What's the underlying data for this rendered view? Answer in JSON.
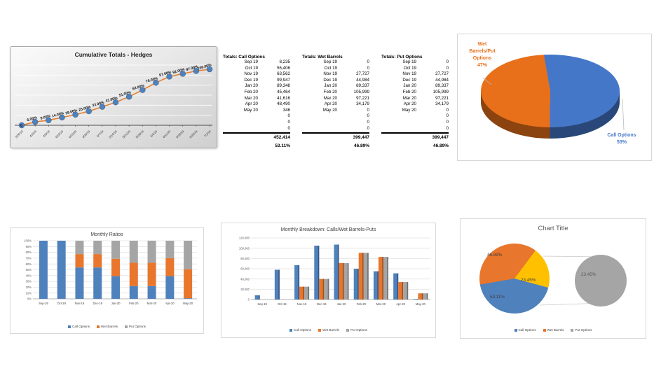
{
  "colors": {
    "blue": "#4F81BD",
    "orange": "#E8762C",
    "gray": "#A5A5A5",
    "gold": "#FFC000",
    "pie_blue": "#4577C9",
    "pie_orange": "#E8701A",
    "line": "#E87E2B"
  },
  "chart_data": [
    {
      "id": "cumulative-totals",
      "type": "line",
      "title": "Cumulative Totals - Hedges",
      "x": [
        "3/26/19",
        "4/2/19",
        "4/9/19",
        "4/16/19",
        "4/23/19",
        "4/30/19",
        "5/7/19",
        "5/14/19",
        "5/21/19",
        "5/28/19",
        "6/4/19",
        "6/11/19",
        "6/18/19",
        "6/25/19",
        "7/2/19"
      ],
      "values": [
        0,
        6,
        9,
        14,
        19,
        25,
        33,
        41,
        51,
        63,
        76,
        87,
        92,
        97,
        100
      ],
      "labels": [
        "0",
        "6.00%",
        "9.00%",
        "14.00%",
        "19.00%",
        "25.00%",
        "33.00%",
        "41.00%",
        "51.00%",
        "63.00%",
        "76.00%",
        "87.00%",
        "92.00%",
        "97.00%",
        "100.00%"
      ],
      "ylim": [
        0,
        110
      ],
      "grid": "on",
      "legend": "none"
    },
    {
      "id": "totals-tables",
      "type": "table",
      "tables": [
        {
          "title": "Totals: Call Options",
          "rows": [
            [
              "Sep 19",
              "8,235"
            ],
            [
              "Oct 19",
              "55,406"
            ],
            [
              "Nov 19",
              "63,562"
            ],
            [
              "Dec 19",
              "99,947"
            ],
            [
              "Jan 20",
              "89,348"
            ],
            [
              "Feb 20",
              "45,464"
            ],
            [
              "Mar 20",
              "41,616"
            ],
            [
              "Apr 20",
              "48,490"
            ],
            [
              "May 20",
              "346"
            ],
            [
              "",
              "0"
            ],
            [
              "",
              "0"
            ],
            [
              "",
              "0"
            ]
          ],
          "total": "452,414",
          "percent": "53.11%"
        },
        {
          "title": "Totals: Wet Barrels",
          "rows": [
            [
              "Sep 19",
              "0"
            ],
            [
              "Oct 19",
              "0"
            ],
            [
              "Nov 19",
              "27,727"
            ],
            [
              "Dec 19",
              "44,984"
            ],
            [
              "Jan 20",
              "89,337"
            ],
            [
              "Feb 20",
              "105,999"
            ],
            [
              "Mar 20",
              "97,221"
            ],
            [
              "Apr 20",
              "34,179"
            ],
            [
              "May 20",
              "0"
            ],
            [
              "",
              "0"
            ],
            [
              "",
              "0"
            ],
            [
              "",
              "0"
            ]
          ],
          "total": "399,447",
          "percent": "46.89%"
        },
        {
          "title": "Totals: Put Options",
          "rows": [
            [
              "Sep 19",
              "0"
            ],
            [
              "Oct 19",
              "0"
            ],
            [
              "Nov 19",
              "27,727"
            ],
            [
              "Dec 19",
              "44,984"
            ],
            [
              "Jan 20",
              "89,337"
            ],
            [
              "Feb 20",
              "105,999"
            ],
            [
              "Mar 20",
              "97,221"
            ],
            [
              "Apr 20",
              "34,179"
            ],
            [
              "May 20",
              "0"
            ],
            [
              "",
              "0"
            ],
            [
              "",
              "0"
            ],
            [
              "",
              "0"
            ]
          ],
          "total": "399,447",
          "percent": "46.89%"
        }
      ]
    },
    {
      "id": "hedge-split-pie",
      "type": "pie",
      "title": "",
      "slices": [
        {
          "name": "Call Options",
          "value": 53,
          "color": "pie_blue"
        },
        {
          "name": "Wet Barrels/Put Options",
          "value": 47,
          "color": "pie_orange"
        }
      ],
      "labels_left": [
        "Wet",
        "Barrels/Put",
        "Options",
        "47%"
      ],
      "labels_right": [
        "Call Options",
        "53%"
      ],
      "style": "3d"
    },
    {
      "id": "monthly-ratios",
      "type": "bar",
      "subtype": "stacked-100",
      "title": "Monthly Ratios",
      "categories": [
        "Sep-19",
        "Oct-19",
        "Nov-19",
        "Dec-19",
        "Jan-20",
        "Feb-20",
        "Mar-20",
        "Apr-20",
        "May-20"
      ],
      "series": [
        {
          "name": "Call Options",
          "color": "blue",
          "values": [
            100,
            100,
            54,
            54,
            39,
            22,
            22,
            39,
            1
          ]
        },
        {
          "name": "Wet Barrels",
          "color": "orange",
          "values": [
            0,
            0,
            23,
            23,
            30,
            40,
            40,
            31,
            50
          ]
        },
        {
          "name": "Put Options",
          "color": "gray",
          "values": [
            0,
            0,
            23,
            23,
            31,
            38,
            38,
            30,
            49
          ]
        }
      ],
      "yticks": [
        "0%",
        "10%",
        "20%",
        "30%",
        "40%",
        "50%",
        "60%",
        "70%",
        "80%",
        "90%",
        "100%"
      ],
      "ylim": [
        0,
        100
      ],
      "grid": "on",
      "legend_position": "bottom"
    },
    {
      "id": "monthly-breakdown",
      "type": "bar",
      "subtype": "grouped-3d",
      "title": "Monthly Breakdown: Calls/Wet Barrels-Puts",
      "categories": [
        "Sep-19",
        "Oct-19",
        "Nov-19",
        "Dec-19",
        "Jan-20",
        "Feb-20",
        "Mar-20",
        "Apr-20",
        "May-20"
      ],
      "series": [
        {
          "name": "Call Options",
          "color": "blue",
          "values": [
            8235,
            58000,
            67000,
            105000,
            107000,
            60000,
            55000,
            51000,
            1000
          ]
        },
        {
          "name": "Wet Barrels",
          "color": "orange",
          "values": [
            0,
            0,
            25000,
            40000,
            71000,
            91000,
            83000,
            34000,
            12000
          ]
        },
        {
          "name": "Put Options",
          "color": "gray",
          "values": [
            0,
            0,
            25000,
            40000,
            71000,
            91000,
            83000,
            34000,
            12000
          ]
        }
      ],
      "ymax": 120000,
      "yticks": [
        "0",
        "20,000",
        "40,000",
        "60,000",
        "80,000",
        "100,000",
        "120,000"
      ],
      "grid": "on",
      "legend_position": "bottom"
    },
    {
      "id": "pie-of-pie",
      "type": "pie",
      "subtype": "pie-of-pie",
      "title": "Chart Title",
      "slices": [
        {
          "name": "Wet Barrels",
          "value": 46.89,
          "label": "46.89%",
          "color": "orange"
        },
        {
          "name": "Other",
          "value": 23.45,
          "label": "23.45%",
          "color": "gold"
        },
        {
          "name": "Call Options",
          "value": 53.11,
          "label": "53.11%",
          "color": "blue"
        }
      ],
      "secondary": {
        "label": "23.45%",
        "color": "gray"
      },
      "legend": [
        {
          "name": "Call Options",
          "color": "blue"
        },
        {
          "name": "Wet Barrels",
          "color": "orange"
        },
        {
          "name": "Put Options",
          "color": "gray"
        }
      ]
    }
  ]
}
